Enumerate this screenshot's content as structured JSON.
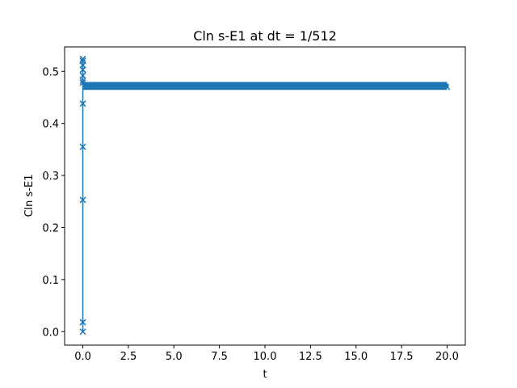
{
  "chart_data": {
    "type": "line",
    "title": "Cln s-E1 at dt = 1/512",
    "xlabel": "t",
    "ylabel": "Cln s-E1",
    "xlim": [
      -1.0,
      21.0
    ],
    "ylim": [
      -0.026,
      0.547
    ],
    "xticks": [
      0.0,
      2.5,
      5.0,
      7.5,
      10.0,
      12.5,
      15.0,
      17.5,
      20.0
    ],
    "xtick_labels": [
      "0.0",
      "2.5",
      "5.0",
      "7.5",
      "10.0",
      "12.5",
      "15.0",
      "17.5",
      "20.0"
    ],
    "yticks": [
      0.0,
      0.1,
      0.2,
      0.3,
      0.4,
      0.5
    ],
    "ytick_labels": [
      "0.0",
      "0.1",
      "0.2",
      "0.3",
      "0.4",
      "0.5"
    ],
    "grid": false,
    "marker": "x",
    "series": [
      {
        "color": "#1f77b4",
        "startup": {
          "x": [
            0.0,
            0.0,
            0.0,
            0.0,
            0.0,
            0.0,
            0.0,
            0.0,
            0.0,
            0.0,
            0.0,
            0.0
          ],
          "y": [
            0.0,
            0.018,
            0.253,
            0.355,
            0.438,
            0.478,
            0.524,
            0.52,
            0.512,
            0.503,
            0.492,
            0.482
          ]
        },
        "steady": {
          "x_start": 0.01,
          "x_end": 20.0,
          "y_values": [
            0.469,
            0.4705,
            0.472,
            0.4735,
            0.475
          ]
        }
      }
    ]
  }
}
